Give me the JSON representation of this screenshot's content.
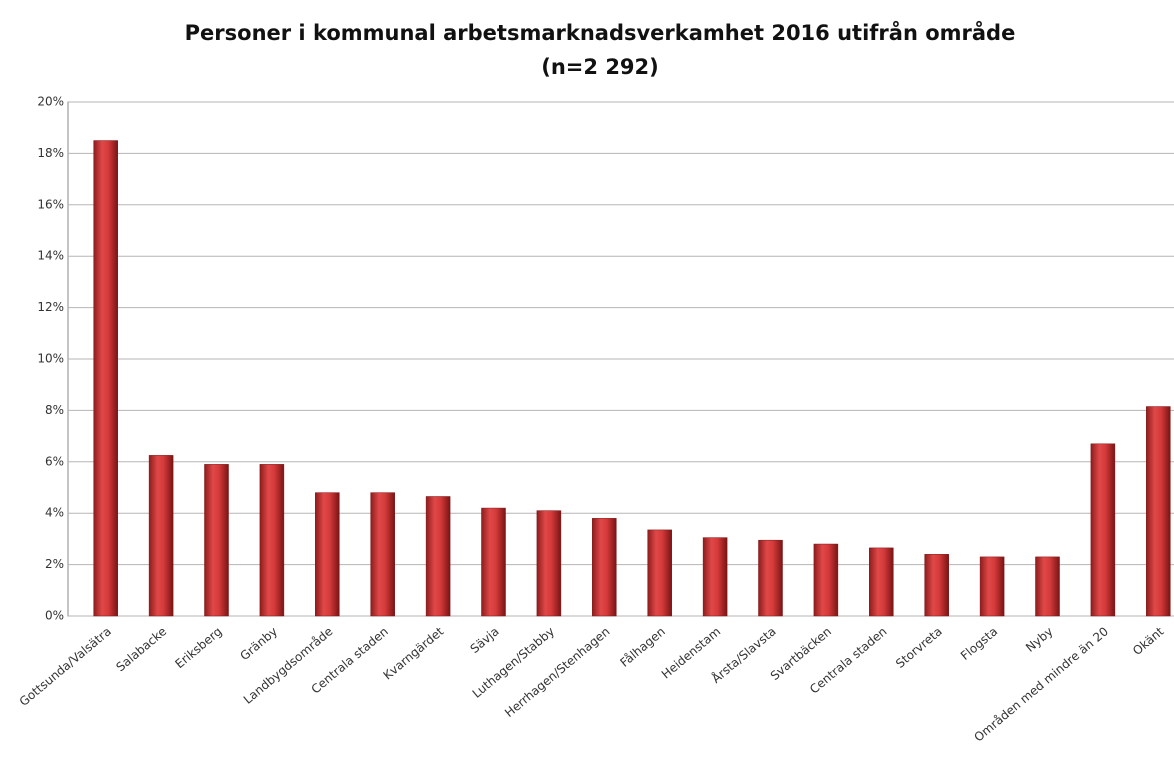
{
  "chart_data": {
    "type": "bar",
    "title": "Personer i kommunal arbetsmarknadsverkamhet 2016 utifrån område",
    "subtitle": "(n=2 292)",
    "categories": [
      "Gottsunda/Valsätra",
      "Salabacke",
      "Eriksberg",
      "Gränby",
      "Landbygdsområde",
      "Centrala staden",
      "Kvarngärdet",
      "Sävja",
      "Luthagen/Stabby",
      "Herrhagen/Stenhagen",
      "Fålhagen",
      "Heidenstam",
      "Årsta/Slavsta",
      "Svartbäcken",
      "Centrala staden",
      "Storvreta",
      "Flogsta",
      "Nyby",
      "Områden med mindre än 20",
      "Okänt"
    ],
    "values": [
      18.5,
      6.25,
      5.9,
      5.9,
      4.8,
      4.8,
      4.65,
      4.2,
      4.1,
      3.8,
      3.35,
      3.05,
      2.95,
      2.8,
      2.65,
      2.4,
      2.3,
      2.3,
      6.7,
      8.15
    ],
    "color": "#d63a3a",
    "ylim": [
      0,
      20
    ],
    "yticks": [
      {
        "value": 0,
        "label": "0%"
      },
      {
        "value": 2,
        "label": "2%"
      },
      {
        "value": 4,
        "label": "4%"
      },
      {
        "value": 6,
        "label": "6%"
      },
      {
        "value": 8,
        "label": "8%"
      },
      {
        "value": 10,
        "label": "10%"
      },
      {
        "value": 12,
        "label": "12%"
      },
      {
        "value": 14,
        "label": "14%"
      },
      {
        "value": 16,
        "label": "16%"
      },
      {
        "value": 18,
        "label": "18%"
      },
      {
        "value": 20,
        "label": "20%"
      }
    ],
    "grid": true
  }
}
